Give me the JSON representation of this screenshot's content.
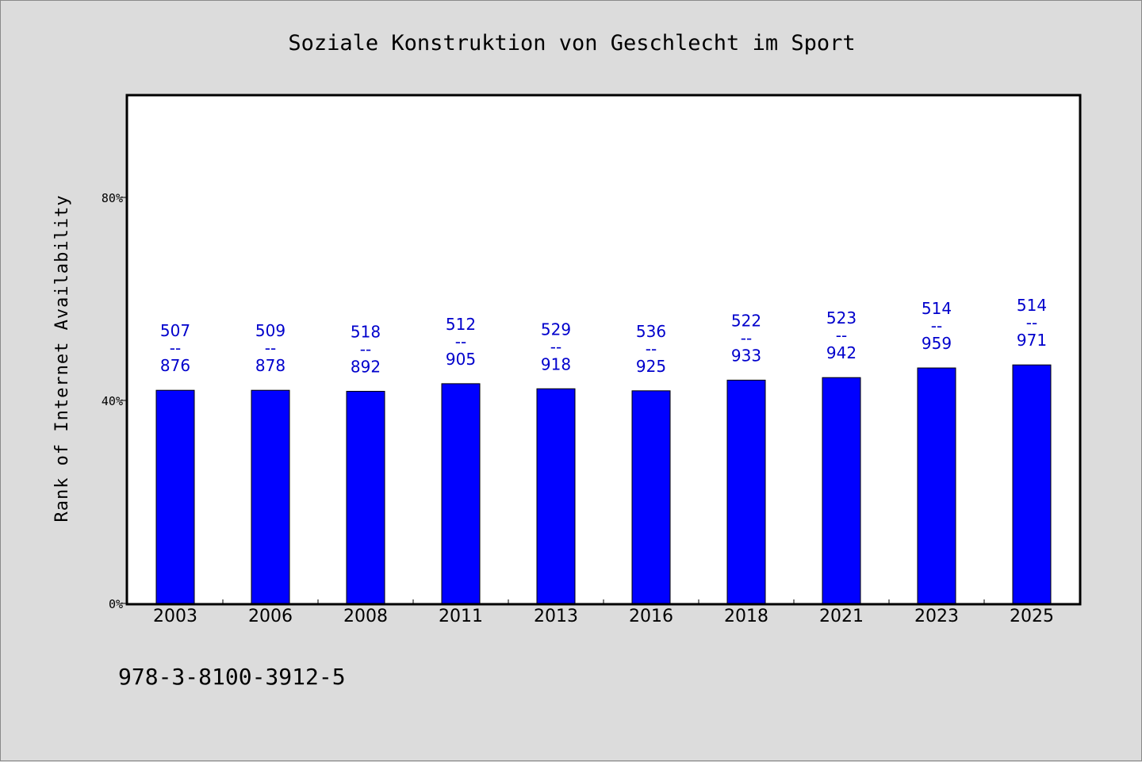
{
  "chart_data": {
    "type": "bar",
    "title": "Soziale Konstruktion von Geschlecht im Sport",
    "ylabel": "Rank of Internet Availability",
    "xlabel": "",
    "ylim": [
      0,
      100
    ],
    "yticks": [
      {
        "value": 0,
        "label": "0%"
      },
      {
        "value": 40,
        "label": "40%"
      },
      {
        "value": 80,
        "label": "80%"
      }
    ],
    "categories": [
      "2003",
      "2006",
      "2008",
      "2011",
      "2013",
      "2016",
      "2018",
      "2021",
      "2023",
      "2025"
    ],
    "values": [
      42,
      42,
      41.8,
      43.3,
      42.3,
      41.9,
      44,
      44.5,
      46.4,
      47
    ],
    "labels": [
      [
        "507",
        "--",
        "876"
      ],
      [
        "509",
        "--",
        "878"
      ],
      [
        "518",
        "--",
        "892"
      ],
      [
        "512",
        "--",
        "905"
      ],
      [
        "529",
        "--",
        "918"
      ],
      [
        "536",
        "--",
        "925"
      ],
      [
        "522",
        "--",
        "933"
      ],
      [
        "523",
        "--",
        "942"
      ],
      [
        "514",
        "--",
        "959"
      ],
      [
        "514",
        "--",
        "971"
      ]
    ],
    "bar_color": "#0000ff",
    "label_color": "#0000cc",
    "grid": false,
    "legend": "none"
  },
  "footer": {
    "isbn": "978-3-8100-3912-5"
  }
}
